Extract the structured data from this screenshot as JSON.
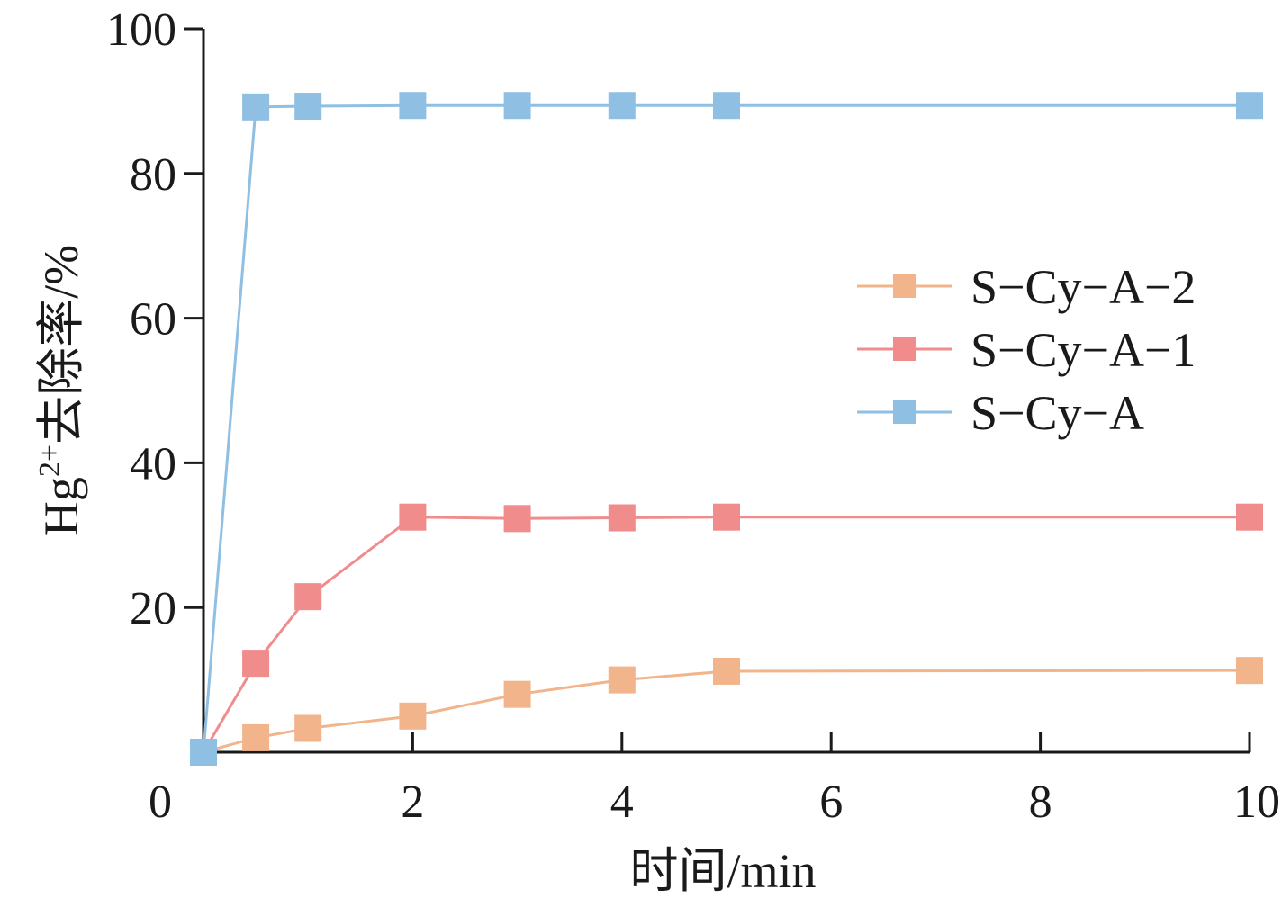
{
  "chart_data": {
    "type": "line",
    "title": "",
    "xlabel": "时间/min",
    "ylabel_parts": {
      "base": "Hg",
      "sup": "2+",
      "rest": "去除率/%"
    },
    "xlim": [
      0,
      10
    ],
    "ylim": [
      0,
      100
    ],
    "xticks": [
      0,
      2,
      4,
      6,
      8,
      10
    ],
    "yticks": [
      20,
      40,
      60,
      80,
      100
    ],
    "grid": false,
    "legend_position": "right-middle",
    "series": [
      {
        "name": "S−Cy−A−2",
        "color": "#f2b48a",
        "marker": "square",
        "x": [
          0,
          0.5,
          1,
          2,
          3,
          4,
          5,
          10
        ],
        "y": [
          0,
          2,
          3.3,
          5,
          8,
          10,
          11.2,
          11.3
        ]
      },
      {
        "name": "S−Cy−A−1",
        "color": "#f08c8c",
        "marker": "square",
        "x": [
          0,
          0.5,
          1,
          2,
          3,
          4,
          5,
          10
        ],
        "y": [
          0,
          12.3,
          21.5,
          32.5,
          32.3,
          32.4,
          32.5,
          32.5
        ]
      },
      {
        "name": "S−Cy−A",
        "color": "#8fc0e3",
        "marker": "square",
        "x": [
          0,
          0.5,
          1,
          2,
          3,
          4,
          5,
          10
        ],
        "y": [
          0,
          89.2,
          89.3,
          89.4,
          89.4,
          89.4,
          89.4,
          89.4
        ]
      }
    ]
  }
}
